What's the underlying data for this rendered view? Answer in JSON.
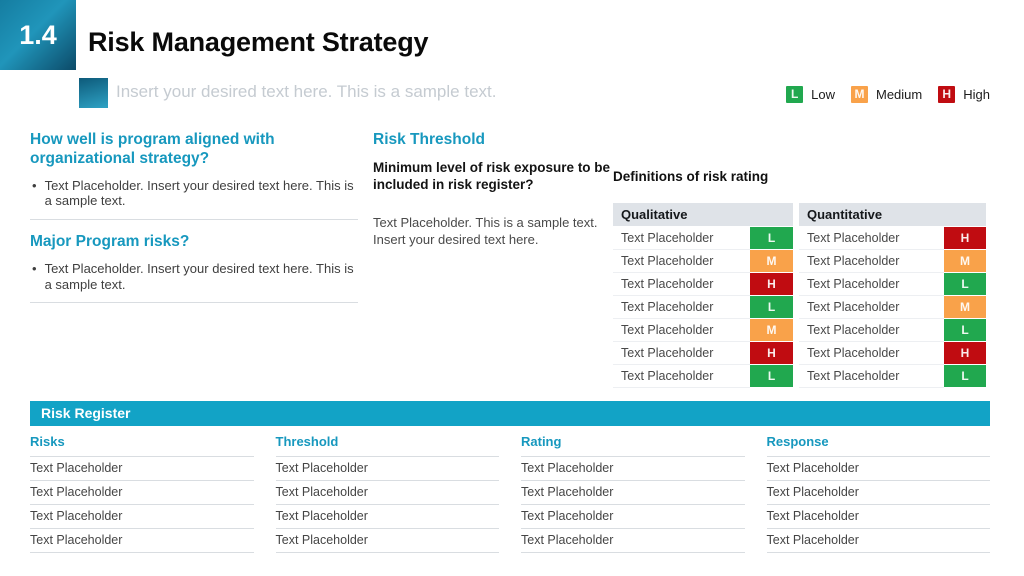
{
  "slide": {
    "number": "1.4",
    "title": "Risk Management Strategy",
    "subtitle": "Insert your desired text here. This is a sample text."
  },
  "legend": {
    "items": [
      {
        "letter": "L",
        "label": "Low",
        "color": "#21a84f"
      },
      {
        "letter": "M",
        "label": "Medium",
        "color": "#f9a24a"
      },
      {
        "letter": "H",
        "label": "High",
        "color": "#c00c11"
      }
    ]
  },
  "left_column": {
    "sections": [
      {
        "heading": "How well is program aligned with organizational strategy?",
        "bullet": "Text Placeholder. Insert your desired text here. This is a sample text."
      },
      {
        "heading": "Major Program risks?",
        "bullet": "Text Placeholder. Insert your desired text here. This is a sample text."
      }
    ]
  },
  "threshold_column": {
    "heading": "Risk Threshold",
    "question": "Minimum level of risk exposure to be included in risk register?",
    "body": "Text Placeholder. This is a sample text. Insert your desired text here."
  },
  "definitions": {
    "title": "Definitions of risk rating",
    "columns": [
      "Qualitative",
      "Quantitative"
    ],
    "rows": [
      {
        "qualitative": "Text Placeholder",
        "qual_rating": "L",
        "quantitative": "Text Placeholder",
        "quant_rating": "H"
      },
      {
        "qualitative": "Text Placeholder",
        "qual_rating": "M",
        "quantitative": "Text Placeholder",
        "quant_rating": "M"
      },
      {
        "qualitative": "Text Placeholder",
        "qual_rating": "H",
        "quantitative": "Text Placeholder",
        "quant_rating": "L"
      },
      {
        "qualitative": "Text Placeholder",
        "qual_rating": "L",
        "quantitative": "Text Placeholder",
        "quant_rating": "M"
      },
      {
        "qualitative": "Text Placeholder",
        "qual_rating": "M",
        "quantitative": "Text Placeholder",
        "quant_rating": "L"
      },
      {
        "qualitative": "Text Placeholder",
        "qual_rating": "H",
        "quantitative": "Text Placeholder",
        "quant_rating": "H"
      },
      {
        "qualitative": "Text Placeholder",
        "qual_rating": "L",
        "quantitative": "Text Placeholder",
        "quant_rating": "L"
      }
    ]
  },
  "risk_register": {
    "title": "Risk Register",
    "columns": [
      {
        "header": "Risks",
        "rows": [
          "Text Placeholder",
          "Text Placeholder",
          "Text Placeholder",
          "Text Placeholder"
        ]
      },
      {
        "header": "Threshold",
        "rows": [
          "Text Placeholder",
          "Text Placeholder",
          "Text Placeholder",
          "Text Placeholder"
        ]
      },
      {
        "header": "Rating",
        "rows": [
          "Text Placeholder",
          "Text Placeholder",
          "Text Placeholder",
          "Text Placeholder"
        ]
      },
      {
        "header": "Response",
        "rows": [
          "Text Placeholder",
          "Text Placeholder",
          "Text Placeholder",
          "Text Placeholder"
        ]
      }
    ]
  },
  "colors": {
    "accent_teal_banner": "#12a3c6",
    "heading_teal": "#1798be",
    "number_box_gradient_start": "#2095ba",
    "number_box_gradient_end": "#0c4a68",
    "table_header_gray": "#dfe3e8",
    "low_green": "#21a84f",
    "medium_orange": "#f9a24a",
    "high_red": "#c00c11"
  }
}
